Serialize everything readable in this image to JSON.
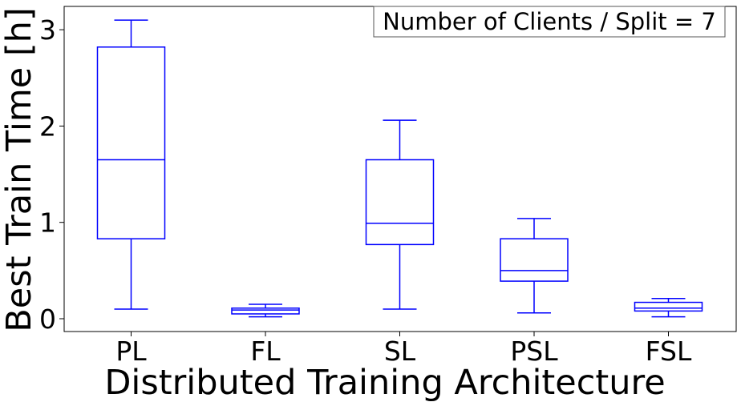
{
  "chart_data": {
    "type": "box",
    "annotation": "Number of Clients / Split = 7",
    "xlabel": "Distributed Training Architecture",
    "ylabel": "Best Train Time [h]",
    "categories": [
      "PL",
      "FL",
      "SL",
      "PSL",
      "FSL"
    ],
    "boxes": [
      {
        "category": "PL",
        "whisker_low": 0.1,
        "q1": 0.83,
        "median": 1.65,
        "q3": 2.82,
        "whisker_high": 3.1
      },
      {
        "category": "FL",
        "whisker_low": 0.02,
        "q1": 0.05,
        "median": 0.09,
        "q3": 0.11,
        "whisker_high": 0.15
      },
      {
        "category": "SL",
        "whisker_low": 0.1,
        "q1": 0.77,
        "median": 0.99,
        "q3": 1.65,
        "whisker_high": 2.06
      },
      {
        "category": "PSL",
        "whisker_low": 0.06,
        "q1": 0.39,
        "median": 0.5,
        "q3": 0.83,
        "whisker_high": 1.04
      },
      {
        "category": "FSL",
        "whisker_low": 0.02,
        "q1": 0.08,
        "median": 0.11,
        "q3": 0.17,
        "whisker_high": 0.21
      }
    ],
    "yticks": [
      0,
      1,
      2,
      3
    ],
    "ylim": [
      -0.15,
      3.25
    ],
    "grid": false,
    "colors": {
      "box": "#0000ff",
      "axes": "#000000",
      "background": "#ffffff"
    }
  }
}
